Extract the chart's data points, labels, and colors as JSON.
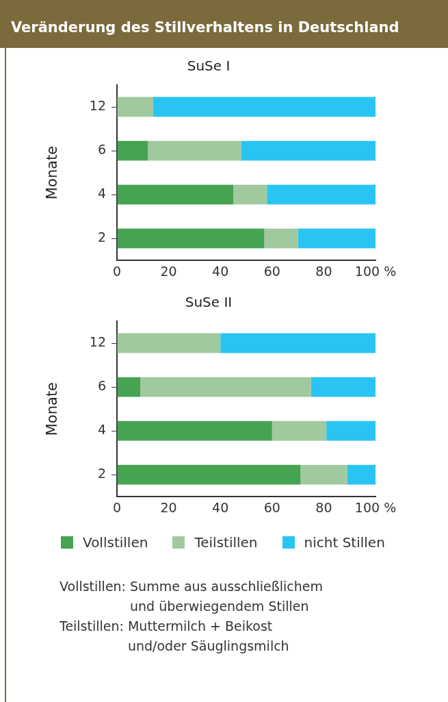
{
  "chart_data": [
    {
      "type": "bar",
      "orientation": "horizontal",
      "stacked": true,
      "title": "Veränderung des Stillverhaltens in Deutschland",
      "subtitle": "SuSe I",
      "ylabel": "Monate",
      "categories": [
        "12",
        "6",
        "4",
        "2"
      ],
      "series": [
        {
          "color": "#45a352",
          "values": [
            0,
            12,
            45,
            57
          ]
        },
        {
          "color": "#a1c99e",
          "values": [
            14,
            36,
            13,
            13
          ]
        },
        {
          "color": "#29c4f2",
          "values": [
            86,
            52,
            42,
            30
          ]
        }
      ],
      "xlim": [
        0,
        100
      ],
      "xticks": [
        0,
        20,
        40,
        60,
        80,
        {
          "value": 100,
          "label": "100 %"
        }
      ],
      "grid": false,
      "legend": false
    },
    {
      "type": "bar",
      "orientation": "horizontal",
      "stacked": true,
      "title": "SuSe II",
      "ylabel": "Monate",
      "categories": [
        "12",
        "6",
        "4",
        "2"
      ],
      "series": [
        {
          "name": "Vollstillen",
          "color": "#45a352",
          "values": [
            0,
            9,
            60,
            71
          ]
        },
        {
          "name": "Teilstillen",
          "color": "#a1c99e",
          "values": [
            40,
            66,
            21,
            18
          ]
        },
        {
          "name": "nicht Stillen",
          "color": "#29c4f2",
          "values": [
            60,
            25,
            19,
            11
          ]
        }
      ],
      "xlim": [
        0,
        100
      ],
      "xticks": [
        0,
        20,
        40,
        60,
        80,
        {
          "value": 100,
          "label": "100 %"
        }
      ],
      "grid": false,
      "legend": "bottom",
      "annotations": [
        "Vollstillen: Summe aus ausschließlichem und überwiegendem Stillen",
        "Teilstillen: Muttermilch + Beikost und/oder Säuglingsmilch"
      ]
    }
  ]
}
